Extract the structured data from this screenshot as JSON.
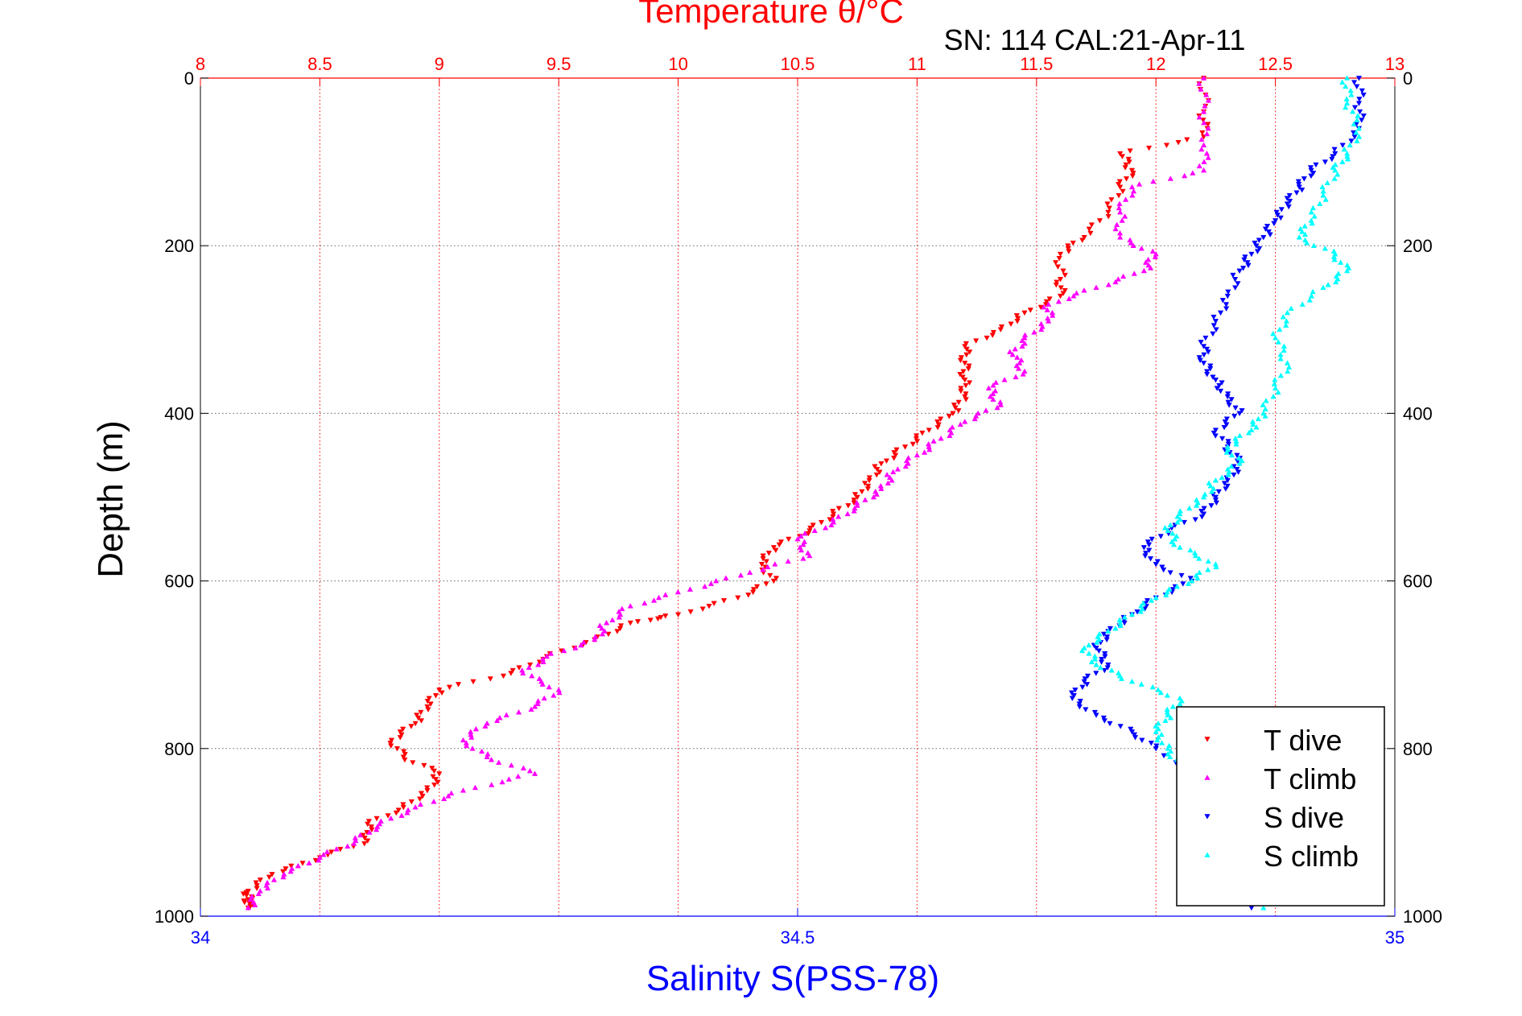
{
  "chart_data": {
    "type": "scatter",
    "title": "Temperature θ/°C",
    "subtitle": "SN: 114  CAL:21-Apr-11",
    "ylabel": "Depth (m)",
    "xlabel": "Salinity S(PSS-78)",
    "y_axis": {
      "ticks": [
        "0",
        "200",
        "400",
        "600",
        "800",
        "1000"
      ],
      "range": [
        0,
        1000
      ],
      "reversed": true
    },
    "x_top_axis": {
      "ticks": [
        "8",
        "8.5",
        "9",
        "9.5",
        "10",
        "10.5",
        "11",
        "11.5",
        "12",
        "12.5",
        "13"
      ],
      "range": [
        8,
        13
      ],
      "color": "#ff0000"
    },
    "x_bottom_axis": {
      "ticks": [
        "34",
        "34.5",
        "35"
      ],
      "range": [
        34,
        35
      ],
      "color": "#0000ff"
    },
    "grid": true,
    "legend": {
      "placement": "bottom-right",
      "entries": [
        "T dive",
        "T climb",
        "S dive",
        "S climb"
      ]
    },
    "series": [
      {
        "name": "T dive",
        "axis": "temperature",
        "color": "#ff0000",
        "marker": "triangle-down",
        "points": [
          [
            0,
            12.2
          ],
          [
            40,
            12.2
          ],
          [
            70,
            12.2
          ],
          [
            90,
            11.85
          ],
          [
            110,
            11.9
          ],
          [
            130,
            11.85
          ],
          [
            160,
            11.8
          ],
          [
            190,
            11.7
          ],
          [
            210,
            11.6
          ],
          [
            240,
            11.6
          ],
          [
            260,
            11.6
          ],
          [
            280,
            11.45
          ],
          [
            300,
            11.35
          ],
          [
            320,
            11.2
          ],
          [
            340,
            11.2
          ],
          [
            360,
            11.2
          ],
          [
            380,
            11.2
          ],
          [
            400,
            11.15
          ],
          [
            420,
            11.05
          ],
          [
            440,
            10.95
          ],
          [
            460,
            10.85
          ],
          [
            480,
            10.8
          ],
          [
            500,
            10.75
          ],
          [
            520,
            10.65
          ],
          [
            540,
            10.55
          ],
          [
            560,
            10.4
          ],
          [
            580,
            10.35
          ],
          [
            600,
            10.4
          ],
          [
            620,
            10.25
          ],
          [
            640,
            10.0
          ],
          [
            650,
            9.8
          ],
          [
            670,
            9.65
          ],
          [
            690,
            9.45
          ],
          [
            710,
            9.3
          ],
          [
            730,
            9.0
          ],
          [
            750,
            8.95
          ],
          [
            770,
            8.9
          ],
          [
            790,
            8.8
          ],
          [
            810,
            8.85
          ],
          [
            830,
            9.0
          ],
          [
            850,
            8.95
          ],
          [
            870,
            8.85
          ],
          [
            890,
            8.7
          ],
          [
            910,
            8.7
          ],
          [
            930,
            8.5
          ],
          [
            950,
            8.3
          ],
          [
            970,
            8.2
          ],
          [
            980,
            8.2
          ],
          [
            990,
            8.2
          ]
        ]
      },
      {
        "name": "T climb",
        "axis": "temperature",
        "color": "#ff00ff",
        "marker": "triangle-up",
        "points": [
          [
            0,
            12.2
          ],
          [
            40,
            12.2
          ],
          [
            80,
            12.2
          ],
          [
            110,
            12.2
          ],
          [
            130,
            11.9
          ],
          [
            160,
            11.85
          ],
          [
            190,
            11.85
          ],
          [
            210,
            12.0
          ],
          [
            230,
            11.95
          ],
          [
            250,
            11.75
          ],
          [
            270,
            11.55
          ],
          [
            290,
            11.55
          ],
          [
            310,
            11.45
          ],
          [
            330,
            11.4
          ],
          [
            350,
            11.45
          ],
          [
            370,
            11.3
          ],
          [
            390,
            11.35
          ],
          [
            410,
            11.2
          ],
          [
            430,
            11.1
          ],
          [
            450,
            11.0
          ],
          [
            470,
            10.9
          ],
          [
            490,
            10.85
          ],
          [
            510,
            10.75
          ],
          [
            530,
            10.65
          ],
          [
            550,
            10.5
          ],
          [
            570,
            10.55
          ],
          [
            590,
            10.3
          ],
          [
            610,
            10.05
          ],
          [
            630,
            9.8
          ],
          [
            650,
            9.7
          ],
          [
            670,
            9.65
          ],
          [
            690,
            9.45
          ],
          [
            710,
            9.35
          ],
          [
            730,
            9.5
          ],
          [
            750,
            9.4
          ],
          [
            770,
            9.2
          ],
          [
            790,
            9.1
          ],
          [
            810,
            9.2
          ],
          [
            830,
            9.4
          ],
          [
            850,
            9.1
          ],
          [
            870,
            8.9
          ],
          [
            890,
            8.75
          ],
          [
            910,
            8.65
          ],
          [
            930,
            8.5
          ],
          [
            950,
            8.35
          ],
          [
            970,
            8.25
          ],
          [
            990,
            8.2
          ]
        ]
      },
      {
        "name": "S dive",
        "axis": "salinity",
        "color": "#0000ff",
        "marker": "triangle-down",
        "points": [
          [
            0,
            34.97
          ],
          [
            30,
            34.97
          ],
          [
            60,
            34.97
          ],
          [
            90,
            34.95
          ],
          [
            110,
            34.93
          ],
          [
            130,
            34.92
          ],
          [
            150,
            34.91
          ],
          [
            170,
            34.9
          ],
          [
            190,
            34.89
          ],
          [
            210,
            34.88
          ],
          [
            230,
            34.87
          ],
          [
            260,
            34.86
          ],
          [
            290,
            34.85
          ],
          [
            320,
            34.84
          ],
          [
            340,
            34.84
          ],
          [
            360,
            34.85
          ],
          [
            380,
            34.86
          ],
          [
            400,
            34.87
          ],
          [
            420,
            34.85
          ],
          [
            440,
            34.86
          ],
          [
            460,
            34.87
          ],
          [
            480,
            34.86
          ],
          [
            500,
            34.85
          ],
          [
            520,
            34.84
          ],
          [
            540,
            34.81
          ],
          [
            560,
            34.79
          ],
          [
            580,
            34.8
          ],
          [
            600,
            34.83
          ],
          [
            620,
            34.8
          ],
          [
            640,
            34.78
          ],
          [
            660,
            34.76
          ],
          [
            680,
            34.75
          ],
          [
            700,
            34.76
          ],
          [
            720,
            34.74
          ],
          [
            740,
            34.73
          ],
          [
            760,
            34.75
          ],
          [
            780,
            34.78
          ],
          [
            800,
            34.8
          ],
          [
            850,
            34.86
          ],
          [
            900,
            34.87
          ],
          [
            950,
            34.88
          ],
          [
            990,
            34.88
          ]
        ]
      },
      {
        "name": "S climb",
        "axis": "salinity",
        "color": "#00ffff",
        "marker": "triangle-up",
        "points": [
          [
            0,
            34.96
          ],
          [
            30,
            34.96
          ],
          [
            60,
            34.97
          ],
          [
            90,
            34.96
          ],
          [
            110,
            34.95
          ],
          [
            140,
            34.94
          ],
          [
            170,
            34.93
          ],
          [
            190,
            34.92
          ],
          [
            210,
            34.95
          ],
          [
            230,
            34.96
          ],
          [
            250,
            34.94
          ],
          [
            280,
            34.91
          ],
          [
            310,
            34.9
          ],
          [
            340,
            34.91
          ],
          [
            370,
            34.9
          ],
          [
            400,
            34.89
          ],
          [
            420,
            34.88
          ],
          [
            440,
            34.86
          ],
          [
            460,
            34.87
          ],
          [
            480,
            34.85
          ],
          [
            500,
            34.84
          ],
          [
            520,
            34.82
          ],
          [
            540,
            34.81
          ],
          [
            560,
            34.82
          ],
          [
            580,
            34.85
          ],
          [
            600,
            34.83
          ],
          [
            620,
            34.8
          ],
          [
            640,
            34.78
          ],
          [
            660,
            34.76
          ],
          [
            680,
            34.74
          ],
          [
            700,
            34.75
          ],
          [
            720,
            34.78
          ],
          [
            740,
            34.82
          ],
          [
            760,
            34.81
          ],
          [
            780,
            34.8
          ],
          [
            800,
            34.81
          ],
          [
            820,
            34.82
          ],
          [
            850,
            34.86
          ],
          [
            900,
            34.87
          ],
          [
            950,
            34.88
          ],
          [
            990,
            34.89
          ]
        ]
      }
    ]
  }
}
